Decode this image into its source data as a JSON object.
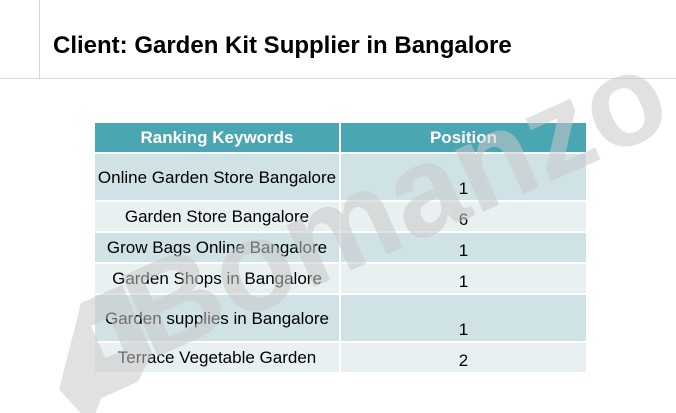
{
  "title": "Client: Garden Kit Supplier in Bangalore",
  "watermark": "Bomanzo",
  "table": {
    "headers": [
      "Ranking Keywords",
      "Position"
    ],
    "rows": [
      {
        "keyword": "Online Garden Store Bangalore",
        "position": "1"
      },
      {
        "keyword": "Garden Store Bangalore",
        "position": "6"
      },
      {
        "keyword": "Grow Bags Online Bangalore",
        "position": "1"
      },
      {
        "keyword": "Garden Shops in Bangalore",
        "position": "1"
      },
      {
        "keyword": "Garden supplies in Bangalore",
        "position": "1"
      },
      {
        "keyword": "Terrace Vegetable Garden",
        "position": "2"
      }
    ]
  },
  "colors": {
    "header_bg": "#4ba6b4",
    "row_odd": "#cfe2e6",
    "row_even": "#e8f0f2",
    "watermark": "#c8c8c8"
  }
}
